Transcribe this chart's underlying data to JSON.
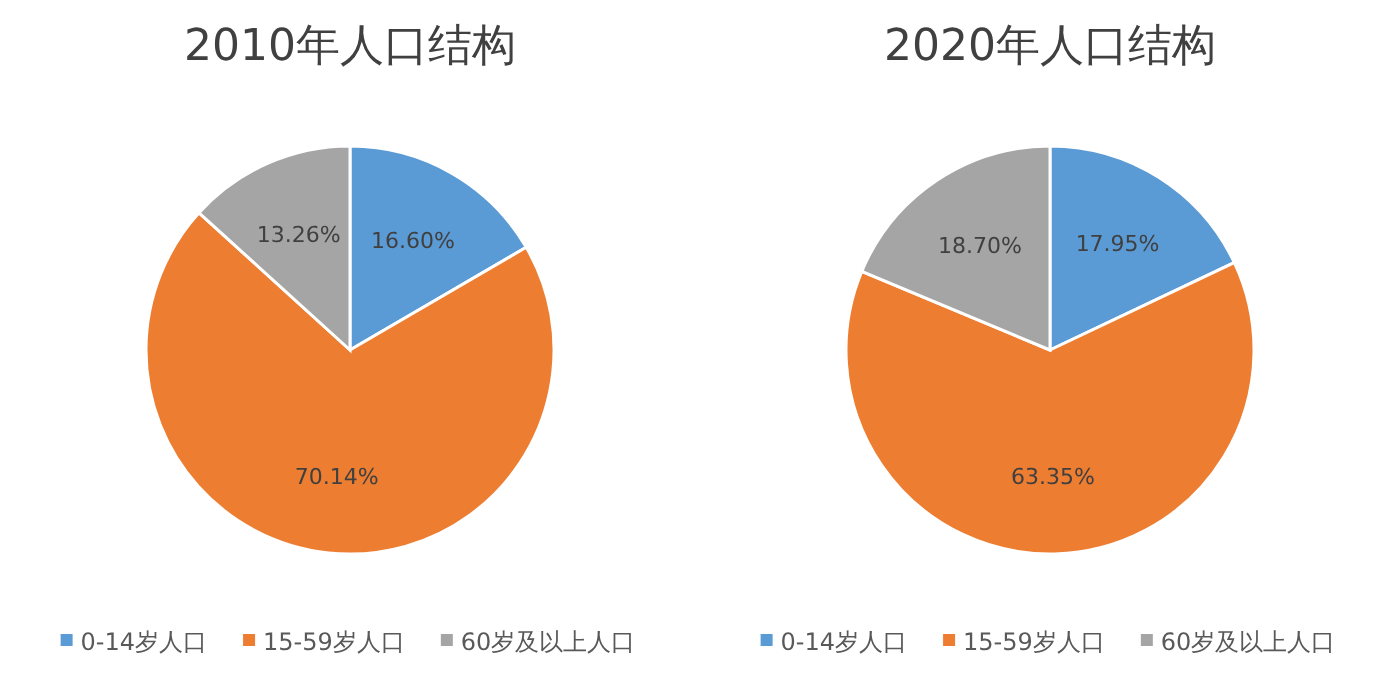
{
  "chart_data": [
    {
      "type": "pie",
      "title": "2010年人口结构",
      "categories": [
        "0-14岁人口",
        "15-59岁人口",
        "60岁及以上人口"
      ],
      "values": [
        16.6,
        70.14,
        13.26
      ],
      "colors": [
        "#5b9bd5",
        "#ed7d31",
        "#a5a5a5"
      ],
      "value_labels": [
        "16.60%",
        "70.14%",
        "13.26%"
      ],
      "legend": "bottom"
    },
    {
      "type": "pie",
      "title": "2020年人口结构",
      "categories": [
        "0-14岁人口",
        "15-59岁人口",
        "60岁及以上人口"
      ],
      "values": [
        17.95,
        63.35,
        18.7
      ],
      "colors": [
        "#5b9bd5",
        "#ed7d31",
        "#a5a5a5"
      ],
      "value_labels": [
        "17.95%",
        "63.35%",
        "18.70%"
      ],
      "legend": "bottom"
    }
  ]
}
